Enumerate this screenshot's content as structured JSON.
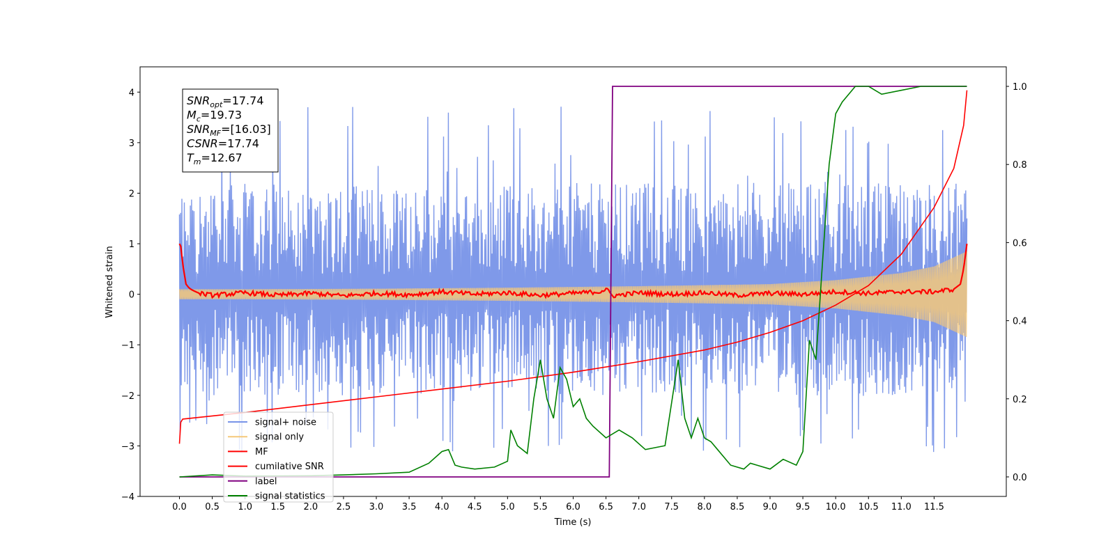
{
  "chart_data": {
    "type": "line",
    "title": "",
    "xlabel": "Time (s)",
    "ylabel": "Whitened strain",
    "y2label": "",
    "xlim": [
      -0.6,
      12.6
    ],
    "ylim": [
      -4.0,
      4.5
    ],
    "y2lim": [
      -0.05,
      1.05
    ],
    "x_ticks": [
      "0.0",
      "0.5",
      "1.0",
      "1.5",
      "2.0",
      "2.5",
      "3.0",
      "3.5",
      "4.0",
      "4.5",
      "5.0",
      "5.5",
      "6.0",
      "6.5",
      "7.0",
      "7.5",
      "8.0",
      "8.5",
      "9.0",
      "9.5",
      "10.0",
      "10.5",
      "11.0",
      "11.5"
    ],
    "y_ticks": [
      "−4",
      "−3",
      "−2",
      "−1",
      "0",
      "1",
      "2",
      "3",
      "4"
    ],
    "y2_ticks": [
      "0.0",
      "0.2",
      "0.4",
      "0.6",
      "0.8",
      "1.0"
    ],
    "grid": false,
    "legend_position": "lower-left",
    "annotation": [
      {
        "sym": "SNR",
        "sub": "opt",
        "value": "=17.74"
      },
      {
        "sym": "M",
        "sub": "c",
        "value": "=19.73"
      },
      {
        "sym": "SNR",
        "sub": "MF",
        "value": "=[16.03]"
      },
      {
        "sym": "CSNR",
        "sub": "",
        "value": "=17.74"
      },
      {
        "sym": "T",
        "sub": "m",
        "value": "=12.67"
      }
    ],
    "series": [
      {
        "name": "signal+ noise",
        "axis": "left",
        "color": "#7893e8",
        "noise_band": {
          "t_start": 0.0,
          "t_end": 12.0,
          "typical_min": -2.0,
          "typical_max": 2.2,
          "peak_max": 4.15,
          "peak_min": -3.65
        }
      },
      {
        "name": "signal only",
        "axis": "left",
        "color": "#f5c87a",
        "envelope": {
          "t": [
            0.0,
            1.0,
            3.0,
            5.0,
            7.0,
            9.0,
            10.0,
            11.0,
            11.5,
            12.0
          ],
          "amplitude": [
            0.1,
            0.1,
            0.11,
            0.13,
            0.16,
            0.2,
            0.28,
            0.42,
            0.55,
            0.85
          ]
        }
      },
      {
        "name": "MF",
        "axis": "left",
        "color": "#ff0000",
        "x": [
          0.0,
          0.02,
          0.05,
          0.1,
          0.15,
          0.2,
          0.3,
          0.5,
          1.0,
          1.5,
          2.0,
          2.5,
          3.0,
          3.5,
          4.0,
          4.5,
          5.0,
          5.5,
          6.0,
          6.4,
          6.5,
          6.6,
          7.0,
          7.5,
          8.0,
          8.5,
          9.0,
          9.5,
          10.0,
          10.5,
          11.0,
          11.5,
          11.8,
          11.9,
          11.95,
          12.0
        ],
        "y": [
          1.0,
          0.95,
          0.6,
          0.2,
          0.12,
          0.08,
          0.02,
          -0.02,
          0.03,
          -0.02,
          0.02,
          -0.03,
          0.02,
          -0.01,
          0.05,
          0.0,
          0.03,
          -0.02,
          0.02,
          0.05,
          0.1,
          -0.03,
          0.03,
          0.0,
          0.03,
          -0.02,
          0.02,
          0.0,
          0.05,
          0.02,
          0.05,
          0.05,
          0.1,
          0.2,
          0.5,
          1.0
        ]
      },
      {
        "name": "cumilative SNR",
        "axis": "right",
        "color": "#ff0000",
        "x": [
          0.0,
          0.02,
          0.05,
          1.0,
          2.0,
          3.0,
          4.0,
          5.0,
          6.0,
          7.0,
          8.0,
          8.5,
          9.0,
          9.5,
          10.0,
          10.5,
          11.0,
          11.5,
          11.8,
          11.95,
          12.0
        ],
        "y": [
          0.085,
          0.14,
          0.148,
          0.165,
          0.185,
          0.205,
          0.225,
          0.245,
          0.268,
          0.295,
          0.325,
          0.345,
          0.37,
          0.4,
          0.44,
          0.49,
          0.57,
          0.69,
          0.79,
          0.9,
          0.99
        ]
      },
      {
        "name": "label",
        "axis": "right",
        "color": "#800080",
        "x": [
          0.0,
          6.55,
          6.6,
          12.0
        ],
        "y": [
          0.0,
          0.0,
          1.0,
          1.0
        ]
      },
      {
        "name": "signal statistics",
        "axis": "right",
        "color": "#008000",
        "x": [
          0.0,
          0.5,
          1.0,
          2.0,
          2.5,
          3.0,
          3.5,
          3.8,
          4.0,
          4.1,
          4.2,
          4.3,
          4.5,
          4.8,
          5.0,
          5.05,
          5.15,
          5.3,
          5.4,
          5.5,
          5.6,
          5.7,
          5.8,
          5.9,
          6.0,
          6.1,
          6.2,
          6.3,
          6.5,
          6.7,
          6.9,
          7.1,
          7.4,
          7.6,
          7.7,
          7.8,
          7.9,
          8.0,
          8.1,
          8.2,
          8.4,
          8.6,
          8.7,
          8.8,
          9.0,
          9.2,
          9.4,
          9.5,
          9.6,
          9.7,
          9.8,
          9.9,
          10.0,
          10.1,
          10.3,
          10.5,
          10.7,
          11.0,
          11.3,
          11.5,
          11.8,
          12.0
        ],
        "y": [
          0.0,
          0.005,
          0.002,
          0.003,
          0.005,
          0.008,
          0.012,
          0.035,
          0.065,
          0.07,
          0.03,
          0.025,
          0.02,
          0.025,
          0.04,
          0.12,
          0.08,
          0.06,
          0.2,
          0.3,
          0.2,
          0.15,
          0.28,
          0.25,
          0.18,
          0.2,
          0.15,
          0.13,
          0.1,
          0.12,
          0.1,
          0.07,
          0.08,
          0.3,
          0.15,
          0.1,
          0.15,
          0.1,
          0.09,
          0.07,
          0.03,
          0.02,
          0.035,
          0.03,
          0.02,
          0.045,
          0.03,
          0.065,
          0.35,
          0.3,
          0.55,
          0.8,
          0.93,
          0.96,
          1.0,
          1.0,
          0.98,
          0.99,
          1.0,
          1.0,
          1.0,
          1.0
        ]
      }
    ]
  }
}
